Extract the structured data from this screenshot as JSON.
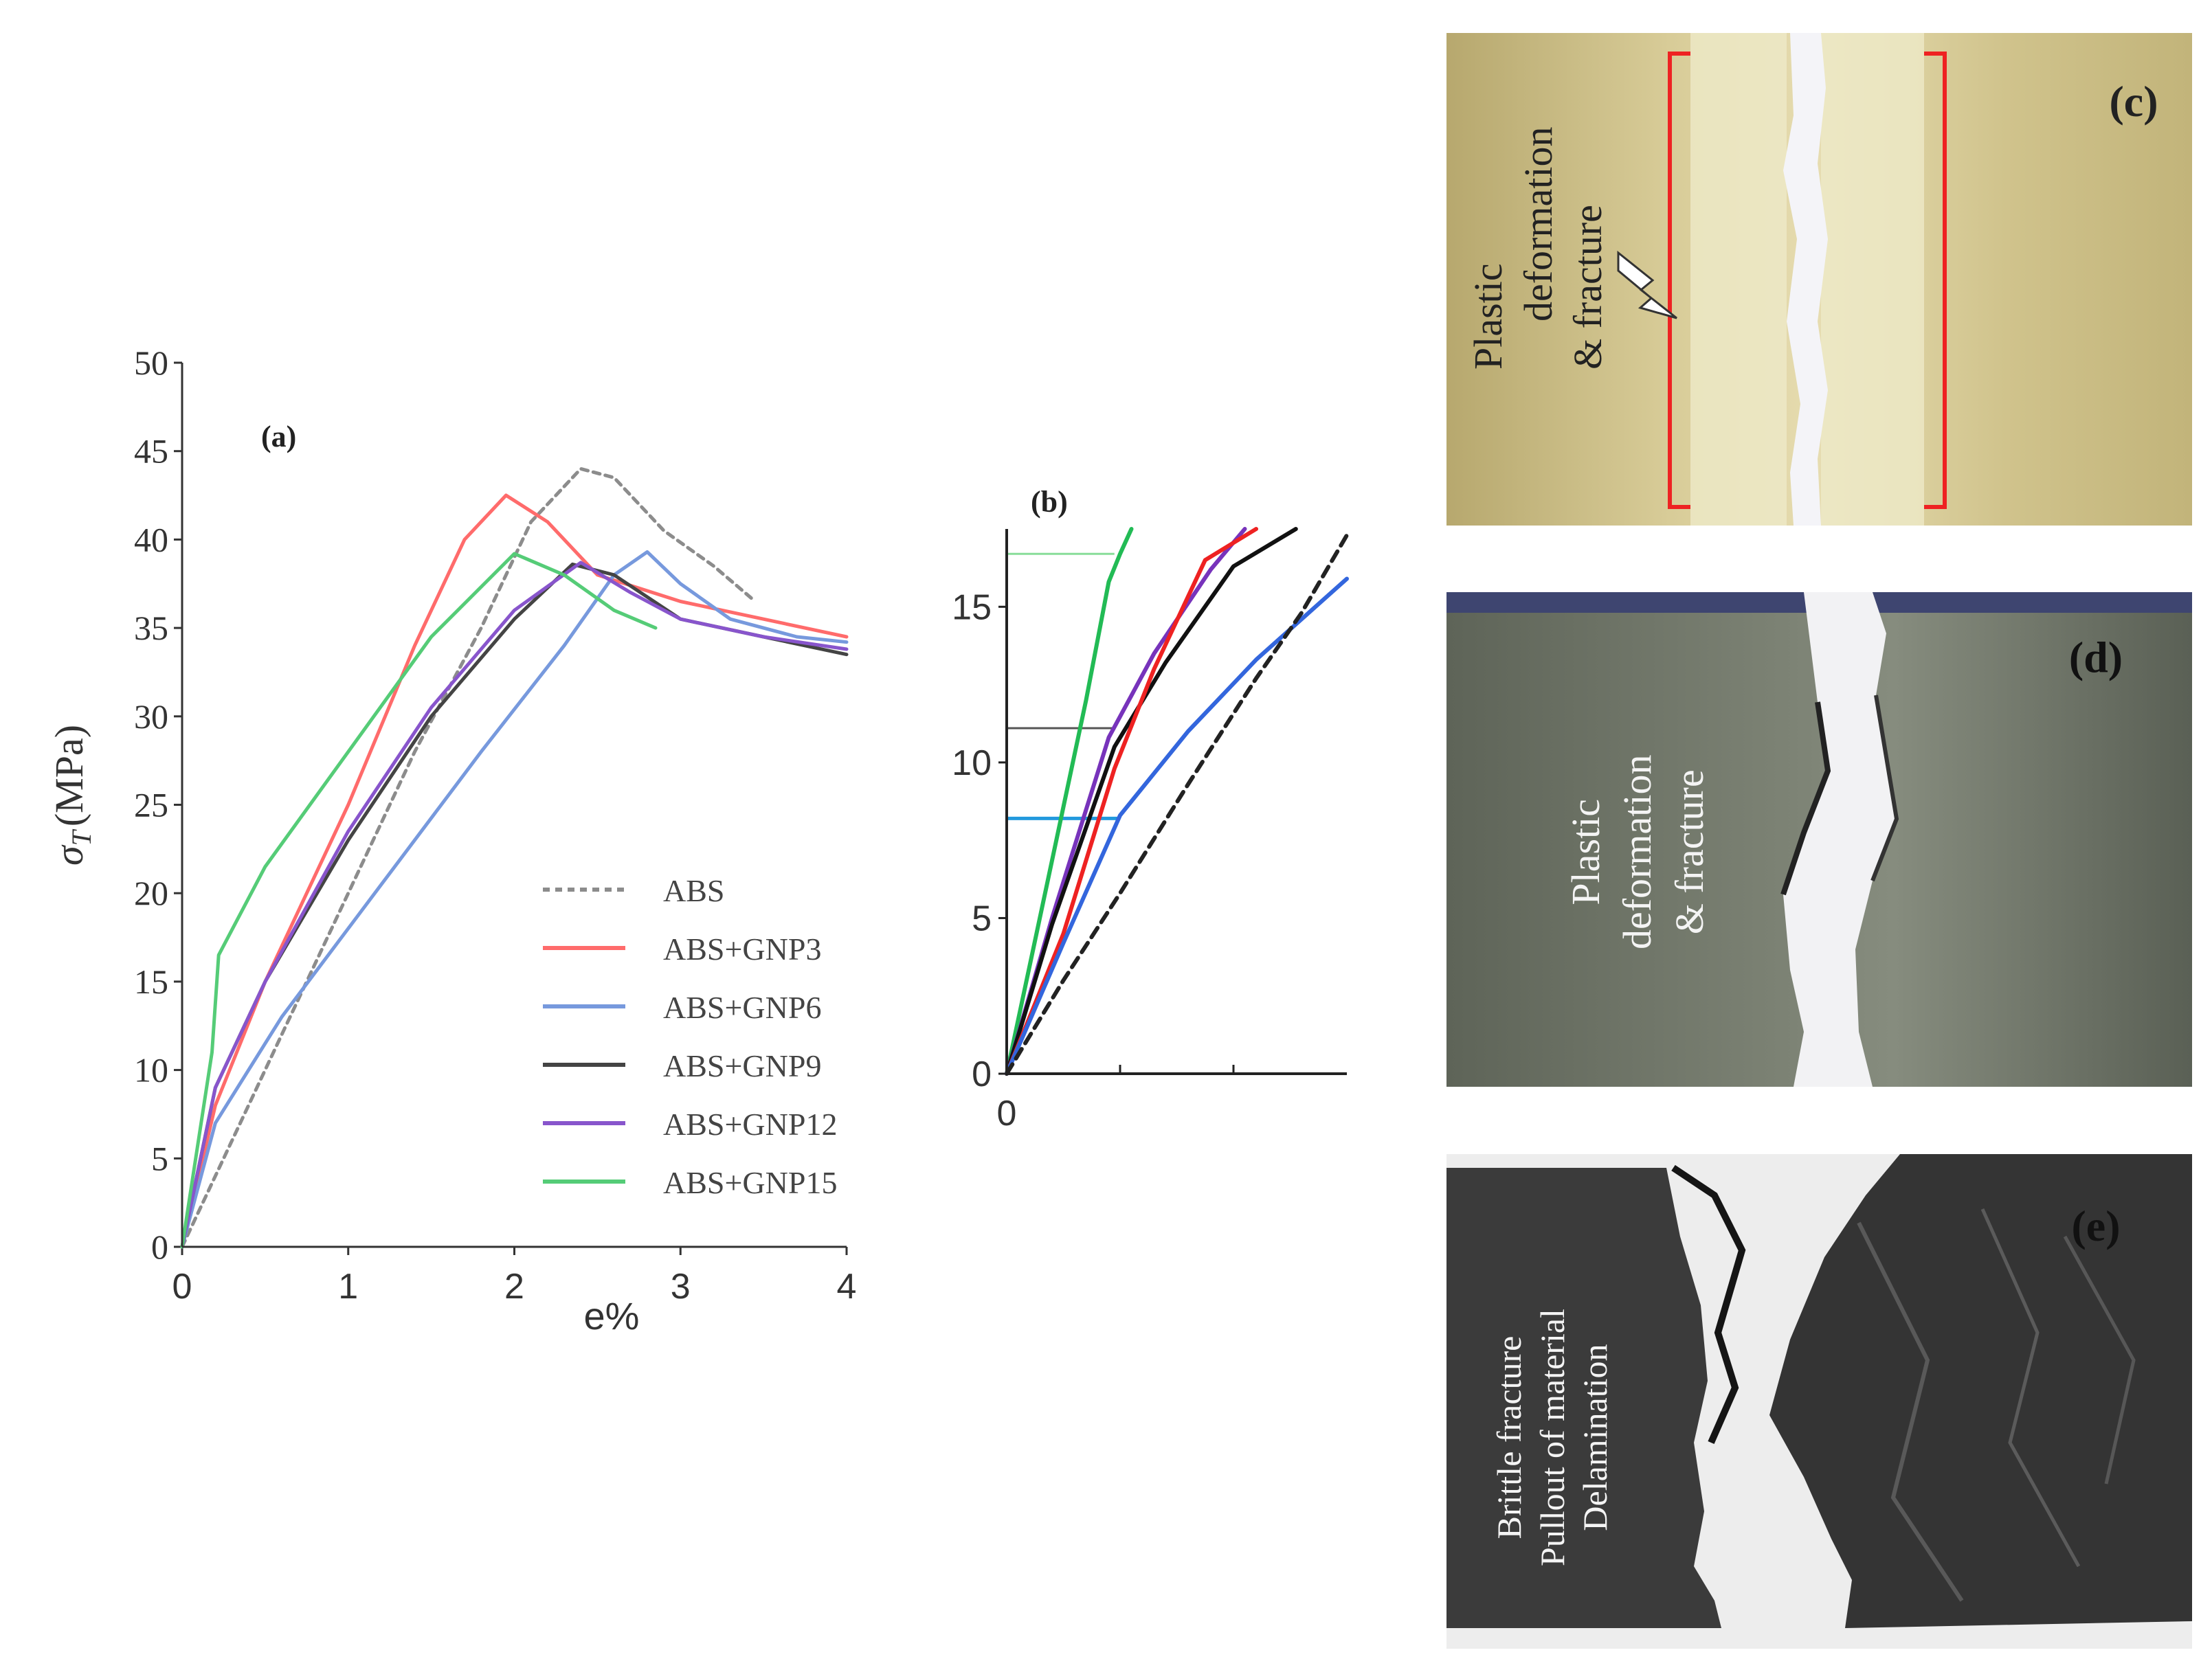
{
  "chart_data": [
    {
      "type": "line",
      "panel_label": "(a)",
      "ylabel_symbol": "σ",
      "ylabel_subscript": "T",
      "ylabel_unit": "(MPa)",
      "xlabel": "e%",
      "xlim": [
        0,
        4
      ],
      "ylim": [
        0,
        50
      ],
      "x_ticks": [
        "0",
        "1",
        "2",
        "3",
        "4"
      ],
      "y_ticks": [
        "0",
        "5",
        "10",
        "15",
        "20",
        "25",
        "30",
        "35",
        "40",
        "45",
        "50"
      ],
      "series": [
        {
          "name": "ABS",
          "color": "#8c8c8c",
          "dashed": true,
          "points": [
            [
              0,
              0
            ],
            [
              0.3,
              6
            ],
            [
              0.6,
              12
            ],
            [
              1.0,
              20
            ],
            [
              1.4,
              28
            ],
            [
              1.8,
              35
            ],
            [
              2.1,
              41
            ],
            [
              2.4,
              44
            ],
            [
              2.6,
              43.5
            ],
            [
              2.9,
              40.5
            ],
            [
              3.2,
              38.5
            ],
            [
              3.45,
              36.5
            ]
          ]
        },
        {
          "name": "ABS+GNP3",
          "color": "#ff6b6b",
          "dashed": false,
          "points": [
            [
              0,
              0
            ],
            [
              0.2,
              8
            ],
            [
              0.5,
              15
            ],
            [
              1.0,
              25
            ],
            [
              1.4,
              34
            ],
            [
              1.7,
              40
            ],
            [
              1.95,
              42.5
            ],
            [
              2.2,
              41
            ],
            [
              2.5,
              38
            ],
            [
              3.0,
              36.5
            ],
            [
              3.5,
              35.5
            ],
            [
              4.0,
              34.5
            ]
          ]
        },
        {
          "name": "ABS+GNP6",
          "color": "#7799dd",
          "dashed": false,
          "points": [
            [
              0,
              0
            ],
            [
              0.2,
              7
            ],
            [
              0.6,
              13
            ],
            [
              1.2,
              20.5
            ],
            [
              1.8,
              28
            ],
            [
              2.3,
              34
            ],
            [
              2.6,
              38
            ],
            [
              2.8,
              39.3
            ],
            [
              3.0,
              37.5
            ],
            [
              3.3,
              35.5
            ],
            [
              3.7,
              34.5
            ],
            [
              4.0,
              34.2
            ]
          ]
        },
        {
          "name": "ABS+GNP9",
          "color": "#444444",
          "dashed": false,
          "points": [
            [
              0,
              0
            ],
            [
              0.2,
              9
            ],
            [
              0.5,
              15
            ],
            [
              1.0,
              23
            ],
            [
              1.5,
              30
            ],
            [
              2.0,
              35.5
            ],
            [
              2.35,
              38.6
            ],
            [
              2.6,
              38
            ],
            [
              3.0,
              35.5
            ],
            [
              3.5,
              34.5
            ],
            [
              4.0,
              33.5
            ]
          ]
        },
        {
          "name": "ABS+GNP12",
          "color": "#8855cc",
          "dashed": false,
          "points": [
            [
              0,
              0
            ],
            [
              0.2,
              9
            ],
            [
              0.5,
              15
            ],
            [
              1.0,
              23.5
            ],
            [
              1.5,
              30.5
            ],
            [
              2.0,
              36
            ],
            [
              2.4,
              38.7
            ],
            [
              2.7,
              37
            ],
            [
              3.0,
              35.5
            ],
            [
              3.5,
              34.5
            ],
            [
              4.0,
              33.8
            ]
          ]
        },
        {
          "name": "ABS+GNP15",
          "color": "#55cc77",
          "dashed": false,
          "points": [
            [
              0,
              0
            ],
            [
              0.18,
              11
            ],
            [
              0.22,
              16.5
            ],
            [
              0.5,
              21.5
            ],
            [
              1.0,
              28
            ],
            [
              1.5,
              34.5
            ],
            [
              2.0,
              39.2
            ],
            [
              2.3,
              38
            ],
            [
              2.6,
              36
            ],
            [
              2.85,
              35
            ]
          ]
        }
      ]
    },
    {
      "type": "line",
      "panel_label": "(b)",
      "xlim": [
        0,
        3
      ],
      "ylim": [
        0,
        17.5
      ],
      "x_ticks": [
        "0"
      ],
      "y_ticks": [
        "0",
        "5",
        "10",
        "15"
      ],
      "series": [
        {
          "name": "ABS+GNP15",
          "color": "#22bb55",
          "dashed": false,
          "points": [
            [
              0,
              0
            ],
            [
              0.35,
              6
            ],
            [
              0.7,
              12
            ],
            [
              0.9,
              15.8
            ],
            [
              1.0,
              16.7
            ],
            [
              1.1,
              17.5
            ]
          ]
        },
        {
          "name": "ABS+GNP12",
          "color": "#7733bb",
          "dashed": false,
          "points": [
            [
              0,
              0
            ],
            [
              0.4,
              5
            ],
            [
              0.9,
              10.8
            ],
            [
              1.3,
              13.5
            ],
            [
              1.8,
              16.2
            ],
            [
              2.1,
              17.5
            ]
          ]
        },
        {
          "name": "ABS+GNP9",
          "color": "#111111",
          "dashed": false,
          "points": [
            [
              0,
              0
            ],
            [
              0.4,
              4.8
            ],
            [
              0.95,
              10.5
            ],
            [
              1.4,
              13.2
            ],
            [
              2.0,
              16.3
            ],
            [
              2.55,
              17.5
            ]
          ]
        },
        {
          "name": "ABS+GNP3",
          "color": "#ee2222",
          "dashed": false,
          "points": [
            [
              0,
              0
            ],
            [
              0.5,
              4.5
            ],
            [
              0.95,
              9.8
            ],
            [
              1.3,
              13
            ],
            [
              1.75,
              16.5
            ],
            [
              2.2,
              17.5
            ]
          ]
        },
        {
          "name": "ABS+GNP6",
          "color": "#3366dd",
          "dashed": false,
          "points": [
            [
              0,
              0
            ],
            [
              0.5,
              4.2
            ],
            [
              1.0,
              8.3
            ],
            [
              1.6,
              11
            ],
            [
              2.2,
              13.3
            ],
            [
              3.0,
              15.9
            ]
          ]
        },
        {
          "name": "ABS",
          "color": "#222222",
          "dashed": true,
          "points": [
            [
              0,
              0
            ],
            [
              0.5,
              3
            ],
            [
              1.0,
              5.8
            ],
            [
              1.6,
              9.3
            ],
            [
              2.2,
              12.7
            ],
            [
              2.6,
              14.8
            ],
            [
              3.0,
              17.3
            ]
          ]
        }
      ],
      "reference_lines": [
        {
          "y": 16.7,
          "x_end": 0.95,
          "color": "#88dd99"
        },
        {
          "y": 11.1,
          "x_end": 0.95,
          "color": "#555555"
        },
        {
          "y": 8.2,
          "x_end": 1.0,
          "color": "#2299dd"
        }
      ]
    }
  ],
  "photos": {
    "c": {
      "label": "(c)",
      "lines": [
        "Plastic",
        "deformation",
        "& fracture"
      ]
    },
    "d": {
      "label": "(d)",
      "lines": [
        "Plastic",
        "deformation",
        "& fracture"
      ]
    },
    "e": {
      "label": "(e)",
      "lines": [
        "Brittle fracture",
        "Pullout of material",
        "Delamination"
      ]
    }
  },
  "colors": {
    "photo_c_bg": "#c9bd8a",
    "photo_d_bg": "#6e7366",
    "photo_e_bg": "#3a3a3a",
    "bracket": "#ee2222"
  }
}
